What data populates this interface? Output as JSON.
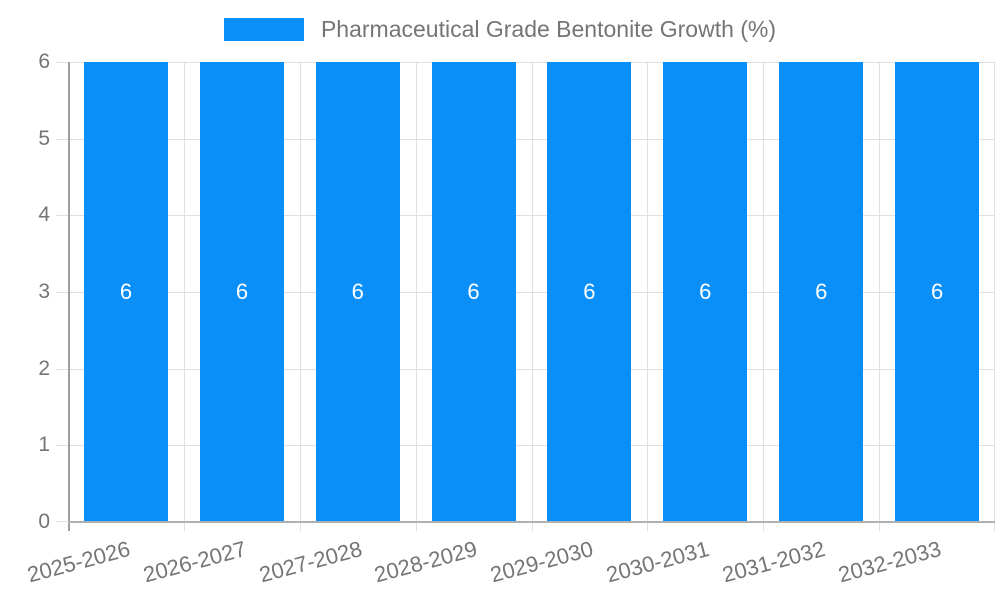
{
  "chart_data": {
    "type": "bar",
    "title": "Pharmaceutical Grade Bentonite Growth (%)",
    "legend": {
      "position": "top",
      "label": "Pharmaceutical Grade Bentonite Growth (%)"
    },
    "categories": [
      "2025-2026",
      "2026-2027",
      "2027-2028",
      "2028-2029",
      "2029-2030",
      "2030-2031",
      "2031-2032",
      "2032-2033"
    ],
    "values": [
      6,
      6,
      6,
      6,
      6,
      6,
      6,
      6
    ],
    "xlabel": "",
    "ylabel": "",
    "ylim": [
      0,
      6
    ],
    "yticks": [
      6,
      5,
      4,
      3,
      2,
      1,
      0
    ],
    "grid": true,
    "x_tick_rotation_deg": -15,
    "bar_value_labels_shown": true,
    "colors": {
      "bar": "#0A8FF9",
      "bar_label": "#FFFFFF",
      "axis_text": "#757575",
      "gridline": "#E0E0E0",
      "axis_line": "#A8A8A8",
      "background": "#FFFFFF"
    }
  }
}
